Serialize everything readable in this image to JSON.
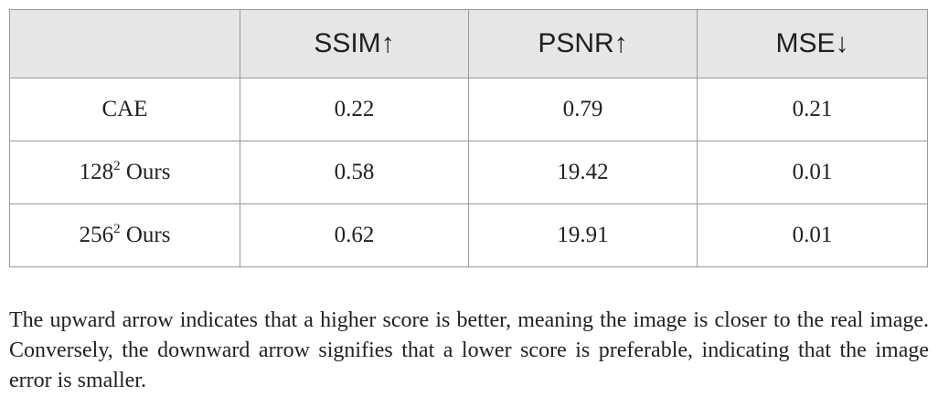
{
  "table": {
    "headers": [
      "",
      "SSIM↑",
      "PSNR↑",
      "MSE↓"
    ],
    "rows": [
      {
        "method": "CAE",
        "method_sup": "",
        "method_suffix": "",
        "ssim": "0.22",
        "psnr": "0.79",
        "mse": "0.21"
      },
      {
        "method": "128",
        "method_sup": "2",
        "method_suffix": " Ours",
        "ssim": "0.58",
        "psnr": "19.42",
        "mse": "0.01"
      },
      {
        "method": "256",
        "method_sup": "2",
        "method_suffix": " Ours",
        "ssim": "0.62",
        "psnr": "19.91",
        "mse": "0.01"
      }
    ]
  },
  "footnote": "The upward arrow indicates that a higher score is better, meaning the image is closer to the real image. Conversely, the downward arrow signifies that a lower score is preferable, indicating that the image error is smaller."
}
